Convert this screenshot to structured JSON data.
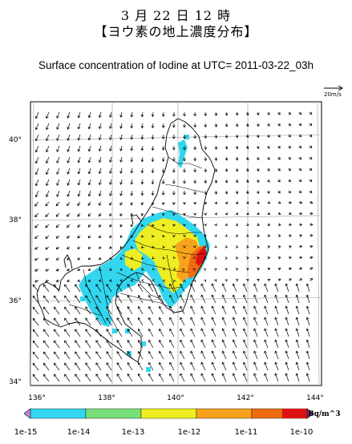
{
  "title_line1": "3 月 22 日 12 時",
  "title_line2": "【ヨウ素の地上濃度分布】",
  "subtitle": "Surface concentration of Iodine at UTC= 2011-03-22_03h",
  "wind_scale_label": "20m/s",
  "lat_labels": [
    "40°",
    "38°",
    "36°",
    "34°"
  ],
  "lon_labels": [
    "136°",
    "138°",
    "140°",
    "142°",
    "144°"
  ],
  "colorbar": {
    "unit": "Bq/m^3",
    "tick_labels": [
      "1e-15",
      "1e-14",
      "1e-13",
      "1e-12",
      "1e-11",
      "1e-10"
    ],
    "colors": [
      "#33d6ee",
      "#79e07a",
      "#eeee22",
      "#f7a21c",
      "#ee6b12",
      "#dd1111"
    ],
    "low_arrow_color": "#c58ad6",
    "high_arrow_color": "#8b2d9b"
  }
}
